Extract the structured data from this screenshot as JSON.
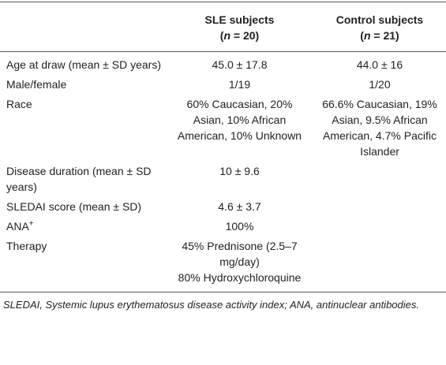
{
  "table": {
    "header": [
      {
        "title": "",
        "sub": []
      },
      {
        "title": "SLE subjects",
        "sub": [
          "(",
          "n",
          " = 20)"
        ]
      },
      {
        "title": "Control subjects",
        "sub": [
          "(",
          "n",
          " = 21)"
        ]
      }
    ],
    "rows": [
      [
        {
          "text": "Age at draw (mean ± SD years)"
        },
        [
          "45.0 ± 17.8"
        ],
        [
          "44.0 ± 16"
        ]
      ],
      [
        {
          "text": "Male/female"
        },
        [
          "1/19"
        ],
        [
          "1/20"
        ]
      ],
      [
        {
          "text": "Race"
        },
        [
          "60% Caucasian, 20% Asian, 10% African American, 10% Unknown"
        ],
        [
          "66.6% Caucasian, 19% Asian, 9.5% African American, 4.7% Pacific Islander"
        ]
      ],
      [
        {
          "text": "Disease duration (mean ± SD years)"
        },
        [
          "10 ± 9.6"
        ],
        []
      ],
      [
        {
          "text": "SLEDAI score (mean ± SD)"
        },
        [
          "4.6 ± 3.7"
        ],
        []
      ],
      [
        {
          "text": "ANA",
          "sup": "+"
        },
        [
          "100%"
        ],
        []
      ],
      [
        {
          "text": "Therapy"
        },
        [
          "45% Prednisone (2.5–7 mg/day)",
          "80% Hydroxychloroquine"
        ],
        []
      ]
    ]
  },
  "footnote": "SLEDAI, Systemic lupus erythematosus disease activity index; ANA, antinuclear antibodies."
}
